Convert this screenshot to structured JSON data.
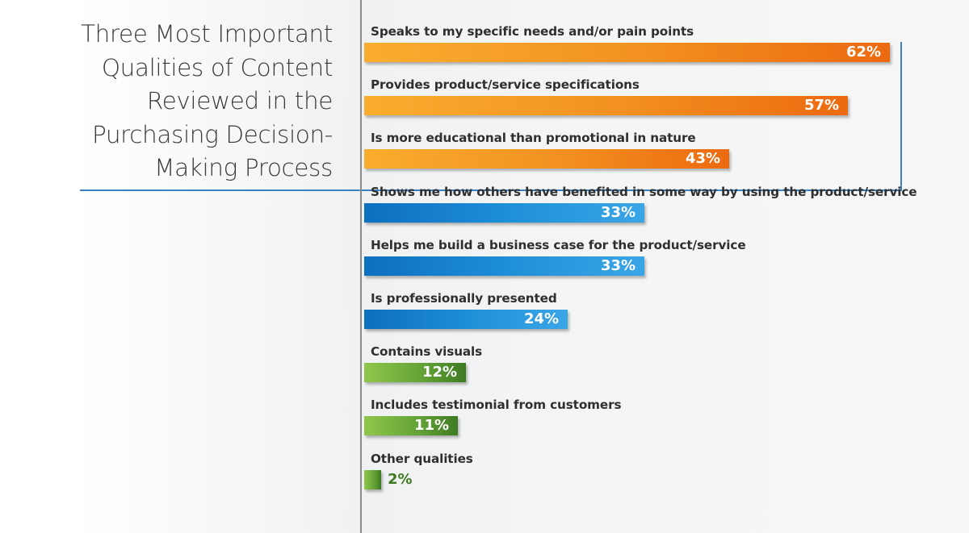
{
  "title": "Three Most Important Qualities of Content Reviewed in the Purchasing Decision-Making Process",
  "title_lines": [
    "Three Most Important",
    "Qualities of Content",
    "Reviewed in the",
    "Purchasing Decision-",
    "Making Process"
  ],
  "colors": {
    "orange": "#f39322",
    "blue": "#1e8ed8",
    "green": "#62a136",
    "rule": "#3a82c4"
  },
  "chart_data": {
    "type": "bar",
    "orientation": "horizontal",
    "title": "Three Most Important Qualities of Content Reviewed in the Purchasing Decision-Making Process",
    "unit": "%",
    "xlim": [
      0,
      100
    ],
    "grid": false,
    "categories": [
      "Speaks to my specific needs and/or pain points",
      "Provides product/service specifications",
      "Is more educational than promotional in nature",
      "Shows me how others have benefited in some way by using the product/service",
      "Helps me build a business case for the product/service",
      "Is professionally presented",
      "Contains visuals",
      "Includes testimonial from customers",
      "Other qualities"
    ],
    "values": [
      62,
      57,
      43,
      33,
      33,
      24,
      12,
      11,
      2
    ],
    "value_labels": [
      "62%",
      "57%",
      "43%",
      "33%",
      "33%",
      "24%",
      "12%",
      "11%",
      "2%"
    ],
    "bar_colors": [
      "orange",
      "orange",
      "orange",
      "blue",
      "blue",
      "blue",
      "green",
      "green",
      "green"
    ]
  }
}
